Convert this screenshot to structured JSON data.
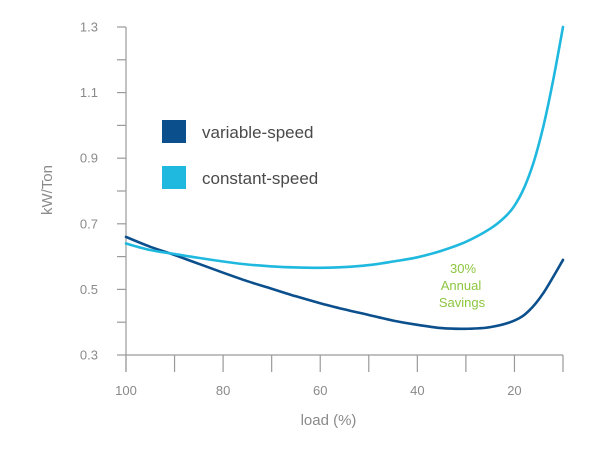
{
  "chart_data": {
    "type": "line",
    "xlabel": "load (%)",
    "ylabel": "kW/Ton",
    "xlim": [
      100,
      10
    ],
    "ylim": [
      0.3,
      1.3
    ],
    "x_ticks": [
      100,
      90,
      80,
      70,
      60,
      50,
      40,
      30,
      20,
      10
    ],
    "x_tick_labels": [
      "100",
      "",
      "80",
      "",
      "60",
      "",
      "40",
      "",
      "20",
      ""
    ],
    "y_ticks": [
      0.3,
      0.4,
      0.5,
      0.6,
      0.7,
      0.8,
      0.9,
      1.0,
      1.1,
      1.2,
      1.3
    ],
    "y_tick_labels": [
      "0.3",
      "",
      "0.5",
      "",
      "0.7",
      "",
      "0.9",
      "",
      "1.1",
      "",
      "1.3"
    ],
    "grid": false,
    "legend_position": "upper-left",
    "series": [
      {
        "name": "variable-speed",
        "color": "#0b4f8c",
        "x": [
          100,
          95,
          90,
          85,
          80,
          75,
          70,
          65,
          60,
          55,
          50,
          45,
          40,
          35,
          30,
          25,
          20,
          17,
          14,
          10
        ],
        "y": [
          0.66,
          0.63,
          0.605,
          0.578,
          0.551,
          0.525,
          0.502,
          0.479,
          0.458,
          0.439,
          0.422,
          0.405,
          0.392,
          0.382,
          0.38,
          0.385,
          0.405,
          0.435,
          0.49,
          0.59
        ]
      },
      {
        "name": "constant-speed",
        "color": "#1fb8df",
        "x": [
          100,
          95,
          90,
          85,
          80,
          75,
          70,
          65,
          60,
          55,
          50,
          45,
          40,
          35,
          30,
          25,
          22,
          20,
          18,
          16,
          14,
          12,
          10
        ],
        "y": [
          0.64,
          0.62,
          0.608,
          0.596,
          0.585,
          0.576,
          0.57,
          0.567,
          0.566,
          0.568,
          0.574,
          0.585,
          0.598,
          0.618,
          0.645,
          0.685,
          0.72,
          0.755,
          0.81,
          0.89,
          1.0,
          1.14,
          1.3
        ]
      }
    ],
    "annotation": {
      "lines": [
        "30%",
        "Annual",
        "Savings"
      ],
      "color": "#8cc63f"
    }
  }
}
